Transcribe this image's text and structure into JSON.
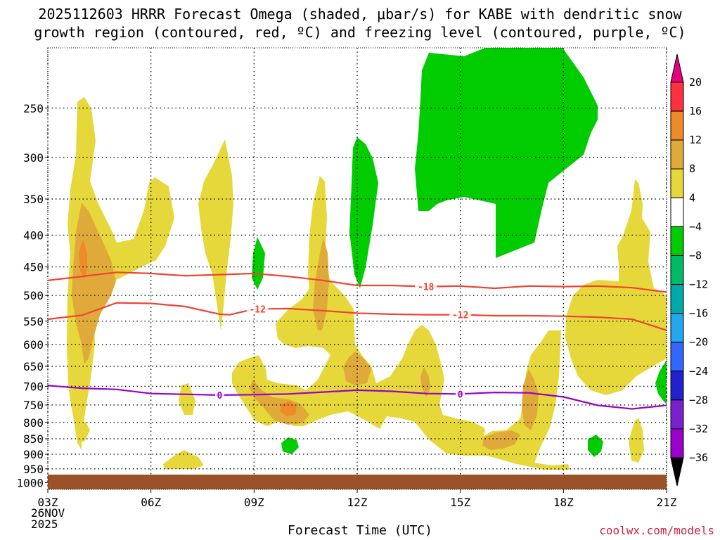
{
  "title_line1": "2025112603 HRRR Forecast Omega (shaded, μbar/s) for KABE with dendritic snow",
  "title_line2": "growth region (contoured, red, ºC) and freezing level (contoured, purple, ºC)",
  "xaxis_title": "Forecast Time (UTC)",
  "credit": "coolwx.com/models",
  "date_day": "26NOV",
  "date_year": "2025",
  "colors": {
    "omega_4_8": "#e6d83a",
    "omega_8_12": "#e0aa3a",
    "omega_12_16": "#ee8a2a",
    "omega_neg4_neg8": "#00cc00",
    "dgz_contour": "#ee4433",
    "freezing_contour": "#9900cc",
    "ground": "#9c5228"
  },
  "chart_data": {
    "type": "heatmap",
    "title": "2025112603 HRRR Forecast Omega (shaded, μbar/s) for KABE with dendritic snow growth region (contoured, red, ºC) and freezing level (contoured, purple, ºC)",
    "xlabel": "Forecast Time (UTC)",
    "ylabel": "",
    "x_ticks": [
      "03Z",
      "06Z",
      "09Z",
      "12Z",
      "15Z",
      "18Z",
      "21Z"
    ],
    "x_range_hours_utc": [
      3,
      21
    ],
    "y_ticks_hpa": [
      250,
      300,
      350,
      400,
      450,
      500,
      550,
      600,
      650,
      700,
      750,
      800,
      850,
      900,
      950,
      1000
    ],
    "y_range_hpa": [
      1025,
      200
    ],
    "grid": true,
    "colorbar": {
      "levels": [
        "20",
        "16",
        "12",
        "8",
        "4",
        "−4",
        "−8",
        "−12",
        "−16",
        "−20",
        "−24",
        "−28",
        "−32",
        "−36"
      ],
      "colors": [
        "#ff3040",
        "#ee8a2a",
        "#e0aa3a",
        "#e6d83a",
        "#ffffff",
        "#00cc00",
        "#00bb66",
        "#00aaaa",
        "#22a6ee",
        "#3366ff",
        "#2222cc",
        "#7722cc",
        "#9900cc",
        "#aaaaaa"
      ],
      "top_color": "#e6007e",
      "bottom_color": "#000000"
    },
    "contours": [
      {
        "name": "-18",
        "x": [
          3,
          4,
          5,
          6,
          7,
          8,
          9,
          10,
          11,
          12,
          13,
          14,
          15,
          16,
          17,
          18,
          19,
          20,
          21
        ],
        "y": [
          473,
          466,
          459,
          461,
          465,
          463,
          461,
          466,
          473,
          482,
          482,
          484,
          483,
          487,
          483,
          484,
          483,
          486,
          494
        ]
      },
      {
        "name": "-12",
        "x": [
          3,
          4,
          5,
          6,
          7,
          8,
          8.3,
          9,
          10,
          11,
          12,
          13,
          14,
          15,
          16,
          17,
          18,
          19,
          20,
          21
        ],
        "y": [
          546,
          538,
          514,
          515,
          521,
          536,
          537,
          526,
          525,
          529,
          534,
          536,
          537,
          537,
          539,
          539,
          540,
          542,
          546,
          569
        ]
      },
      {
        "name": "0",
        "x": [
          3,
          4,
          5,
          6,
          7,
          8,
          9,
          10,
          11,
          12,
          13,
          14,
          15,
          16,
          17,
          18,
          19,
          20,
          21
        ],
        "y": [
          698,
          705,
          708,
          719,
          721,
          723,
          722,
          720,
          715,
          710,
          713,
          719,
          720,
          716,
          717,
          728,
          751,
          761,
          751
        ]
      }
    ],
    "contour_labels": [
      {
        "text": "-18",
        "x": 14,
        "y": 484
      },
      {
        "text": "-12",
        "x": 9.1,
        "y": 526
      },
      {
        "text": "-12",
        "x": 15,
        "y": 537
      },
      {
        "text": "0",
        "x": 8,
        "y": 723
      },
      {
        "text": "0",
        "x": 15,
        "y": 720
      }
    ],
    "ground_hpa": 1000
  }
}
